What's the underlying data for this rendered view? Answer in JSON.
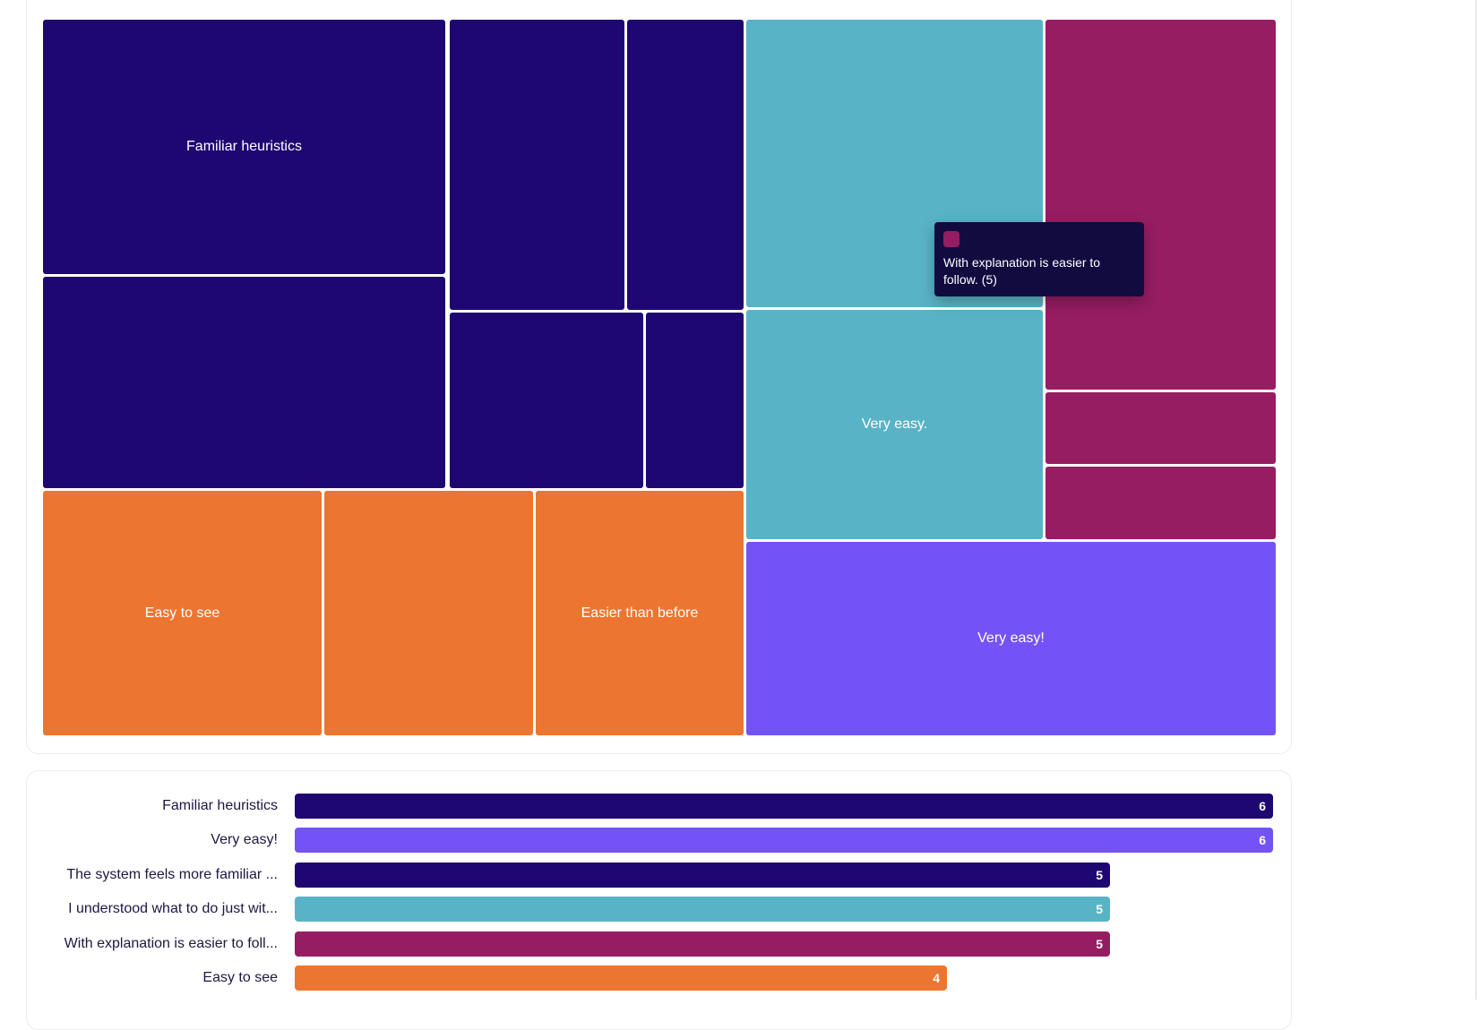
{
  "colors": {
    "navy": "#1e0771",
    "teal": "#59b3c6",
    "plum": "#961d62",
    "orange": "#ec7631",
    "violet": "#7453f6"
  },
  "chart_data": [
    {
      "type": "treemap",
      "title": "",
      "tiles": [
        {
          "label": "Familiar heuristics",
          "color": "navy"
        },
        {
          "label": "",
          "color": "navy"
        },
        {
          "label": "",
          "color": "navy"
        },
        {
          "label": "",
          "color": "navy"
        },
        {
          "label": "",
          "color": "navy"
        },
        {
          "label": "",
          "color": "navy"
        },
        {
          "label": "Easy to see",
          "color": "orange"
        },
        {
          "label": "",
          "color": "orange"
        },
        {
          "label": "Easier than before",
          "color": "orange"
        },
        {
          "label": "",
          "color": "teal"
        },
        {
          "label": "Very easy.",
          "color": "teal"
        },
        {
          "label": "",
          "color": "plum"
        },
        {
          "label": "",
          "color": "plum"
        },
        {
          "label": "",
          "color": "plum"
        },
        {
          "label": "Very easy!",
          "color": "violet"
        }
      ],
      "tooltip": {
        "text": "With explanation is easier to follow. (5)",
        "color": "plum"
      }
    },
    {
      "type": "bar",
      "orientation": "horizontal",
      "xlim": [
        0,
        6
      ],
      "bars": [
        {
          "label": "Familiar heuristics",
          "value": 6,
          "color": "navy"
        },
        {
          "label": "Very easy!",
          "value": 6,
          "color": "violet"
        },
        {
          "label": "The system feels more familiar ...",
          "value": 5,
          "color": "navy"
        },
        {
          "label": "I understood what to do just wit...",
          "value": 5,
          "color": "teal"
        },
        {
          "label": "With explanation is easier to foll...",
          "value": 5,
          "color": "plum"
        },
        {
          "label": "Easy to see",
          "value": 4,
          "color": "orange"
        }
      ]
    }
  ]
}
